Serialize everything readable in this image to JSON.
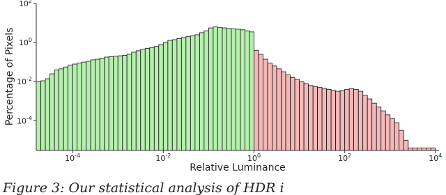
{
  "chart_data": {
    "type": "histogram",
    "x_label": "Relative Luminance",
    "y_label": "Percentage of Pixels",
    "caption": "Figure 3: Our statistical analysis of HDR i",
    "log_x": true,
    "log_y": true,
    "xlim": [
      1.58e-05,
      12000
    ],
    "ylim": [
      3e-06,
      100
    ],
    "xticks": [
      {
        "value": 0.0001,
        "label": "10",
        "exponent": "-4"
      },
      {
        "value": 0.01,
        "label": "10",
        "exponent": "-2"
      },
      {
        "value": 1,
        "label": "10",
        "exponent": "0"
      },
      {
        "value": 100,
        "label": "10",
        "exponent": "2"
      },
      {
        "value": 10000,
        "label": "10",
        "exponent": "4"
      }
    ],
    "yticks": [
      {
        "value": 0.0001,
        "label": "10",
        "exponent": "-4"
      },
      {
        "value": 0.01,
        "label": "10",
        "exponent": "-2"
      },
      {
        "value": 1,
        "label": "10",
        "exponent": "0"
      },
      {
        "value": 100,
        "label": "10",
        "exponent": "2"
      }
    ],
    "colors": [
      "#b6f0ae",
      "#f5b8b8"
    ],
    "color_split": 1,
    "bins": [
      1.58e-05,
      2e-05,
      2.51e-05,
      3.16e-05,
      3.98e-05,
      5.01e-05,
      6.31e-05,
      7.94e-05,
      0.0001,
      0.000126,
      0.000158,
      0.0002,
      0.000251,
      0.000316,
      0.000398,
      0.000501,
      0.000631,
      0.000794,
      0.001,
      0.00126,
      0.00158,
      0.002,
      0.00251,
      0.00316,
      0.00398,
      0.00501,
      0.00631,
      0.00794,
      0.01,
      0.0126,
      0.0158,
      0.02,
      0.0251,
      0.0316,
      0.0398,
      0.0501,
      0.0631,
      0.0794,
      0.1,
      0.126,
      0.158,
      0.2,
      0.251,
      0.316,
      0.398,
      0.501,
      0.631,
      0.794,
      1,
      1.26,
      1.58,
      2,
      2.51,
      3.16,
      3.98,
      5.01,
      6.31,
      7.94,
      10,
      12.6,
      15.8,
      20,
      25.1,
      31.6,
      39.8,
      50.1,
      63.1,
      79.4,
      100,
      126,
      158,
      200,
      251,
      316,
      398,
      501,
      631,
      794,
      1000,
      1260,
      1580,
      2000,
      2510,
      3160,
      3980,
      5010,
      6310,
      7940,
      10000
    ],
    "values": [
      0.01,
      0.011,
      0.014,
      0.025,
      0.04,
      0.045,
      0.056,
      0.071,
      0.079,
      0.089,
      0.1,
      0.11,
      0.13,
      0.14,
      0.16,
      0.18,
      0.19,
      0.2,
      0.21,
      0.22,
      0.25,
      0.32,
      0.38,
      0.45,
      0.5,
      0.56,
      0.63,
      0.79,
      1,
      1.3,
      1.4,
      1.6,
      1.8,
      2,
      2.2,
      2.5,
      3.2,
      4,
      5.6,
      6.3,
      6,
      5.6,
      5.2,
      5,
      4.8,
      4.5,
      4,
      3.5,
      0.4,
      0.25,
      0.14,
      0.089,
      0.063,
      0.045,
      0.032,
      0.022,
      0.016,
      0.013,
      0.01,
      0.0079,
      0.0063,
      0.0056,
      0.005,
      0.0045,
      0.004,
      0.0035,
      0.0032,
      0.0035,
      0.004,
      0.0045,
      0.004,
      0.0032,
      0.002,
      0.0013,
      0.00079,
      0.0005,
      0.00032,
      0.0002,
      0.00013,
      7.9e-05,
      3.2e-05,
      1e-05,
      4e-06,
      4e-06,
      4e-06,
      4e-06,
      4e-06,
      4e-06
    ]
  }
}
